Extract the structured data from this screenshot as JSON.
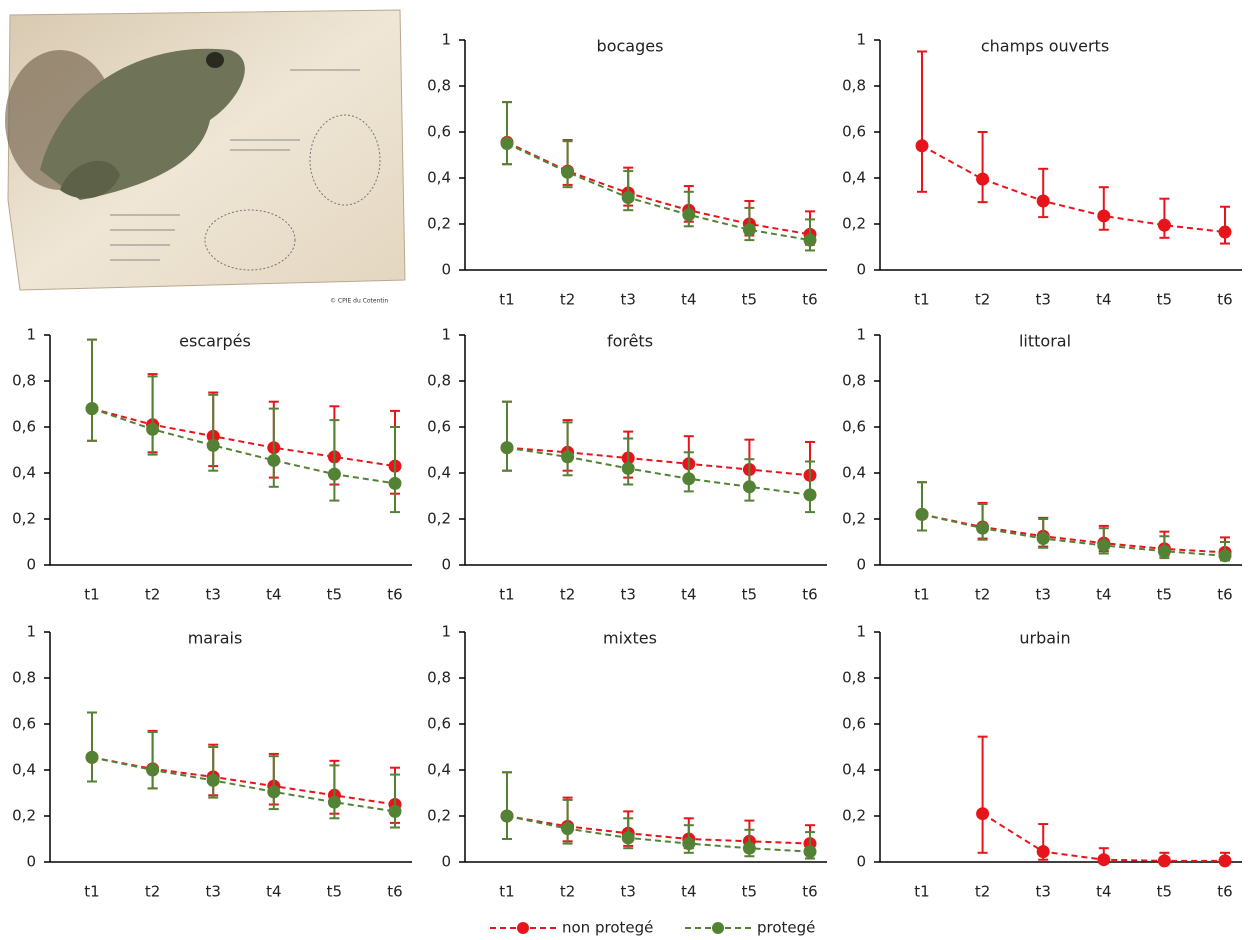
{
  "credit": "© CPIE du Cotentin",
  "chart_data": [
    {
      "type": "line",
      "title": "bocages",
      "categories": [
        "t1",
        "t2",
        "t3",
        "t4",
        "t5",
        "t6"
      ],
      "ylim": [
        0,
        1
      ],
      "yticks": [
        0,
        {
          "value": 0.2,
          "label": "0,2"
        },
        {
          "value": 0.4,
          "label": "0,4"
        },
        {
          "value": 0.6,
          "label": "0,6"
        },
        {
          "value": 0.8,
          "label": "0,8"
        },
        1
      ],
      "series": [
        {
          "name": "non protegé",
          "color": "#e8141b",
          "values": [
            0.555,
            0.43,
            0.335,
            0.26,
            0.2,
            0.155
          ],
          "lower": [
            0.46,
            0.37,
            0.28,
            0.21,
            0.15,
            0.11
          ],
          "upper": [
            0.73,
            0.565,
            0.445,
            0.365,
            0.3,
            0.255
          ]
        },
        {
          "name": "protegé",
          "color": "#548235",
          "values": [
            0.55,
            0.425,
            0.315,
            0.24,
            0.175,
            0.13
          ],
          "lower": [
            0.46,
            0.36,
            0.26,
            0.19,
            0.13,
            0.085
          ],
          "upper": [
            0.73,
            0.56,
            0.43,
            0.34,
            0.27,
            0.22
          ]
        }
      ]
    },
    {
      "type": "line",
      "title": "champs ouverts",
      "categories": [
        "t1",
        "t2",
        "t3",
        "t4",
        "t5",
        "t6"
      ],
      "ylim": [
        0,
        1
      ],
      "yticks": [
        0,
        {
          "value": 0.2,
          "label": "0,2"
        },
        {
          "value": 0.4,
          "label": "0,4"
        },
        {
          "value": 0.6,
          "label": "0,6"
        },
        {
          "value": 0.8,
          "label": "0,8"
        },
        1
      ],
      "series": [
        {
          "name": "non protegé",
          "color": "#e8141b",
          "values": [
            0.54,
            0.395,
            0.3,
            0.235,
            0.195,
            0.165
          ],
          "lower": [
            0.34,
            0.295,
            0.23,
            0.175,
            0.14,
            0.115
          ],
          "upper": [
            0.95,
            0.6,
            0.44,
            0.36,
            0.31,
            0.275
          ]
        }
      ]
    },
    {
      "type": "line",
      "title": "escarpés",
      "categories": [
        "t1",
        "t2",
        "t3",
        "t4",
        "t5",
        "t6"
      ],
      "ylim": [
        0,
        1
      ],
      "yticks": [
        0,
        {
          "value": 0.2,
          "label": "0,2"
        },
        {
          "value": 0.4,
          "label": "0,4"
        },
        {
          "value": 0.6,
          "label": "0,6"
        },
        {
          "value": 0.8,
          "label": "0,8"
        },
        1
      ],
      "series": [
        {
          "name": "non protegé",
          "color": "#e8141b",
          "values": [
            0.68,
            0.61,
            0.56,
            0.51,
            0.47,
            0.43
          ],
          "lower": [
            0.54,
            0.49,
            0.43,
            0.38,
            0.35,
            0.31
          ],
          "upper": [
            0.98,
            0.83,
            0.75,
            0.71,
            0.69,
            0.67
          ]
        },
        {
          "name": "protegé",
          "color": "#548235",
          "values": [
            0.68,
            0.59,
            0.52,
            0.455,
            0.395,
            0.355
          ],
          "lower": [
            0.54,
            0.48,
            0.41,
            0.34,
            0.28,
            0.23
          ],
          "upper": [
            0.98,
            0.82,
            0.74,
            0.68,
            0.63,
            0.6
          ]
        }
      ]
    },
    {
      "type": "line",
      "title": "forêts",
      "categories": [
        "t1",
        "t2",
        "t3",
        "t4",
        "t5",
        "t6"
      ],
      "ylim": [
        0,
        1
      ],
      "yticks": [
        0,
        {
          "value": 0.2,
          "label": "0,2"
        },
        {
          "value": 0.4,
          "label": "0,4"
        },
        {
          "value": 0.6,
          "label": "0,6"
        },
        {
          "value": 0.8,
          "label": "0,8"
        },
        1
      ],
      "series": [
        {
          "name": "non protegé",
          "color": "#e8141b",
          "values": [
            0.51,
            0.49,
            0.465,
            0.44,
            0.415,
            0.39
          ],
          "lower": [
            0.41,
            0.41,
            0.38,
            0.36,
            0.33,
            0.31
          ],
          "upper": [
            0.71,
            0.63,
            0.58,
            0.56,
            0.545,
            0.535
          ]
        },
        {
          "name": "protegé",
          "color": "#548235",
          "values": [
            0.51,
            0.47,
            0.42,
            0.375,
            0.34,
            0.305
          ],
          "lower": [
            0.41,
            0.39,
            0.35,
            0.32,
            0.28,
            0.23
          ],
          "upper": [
            0.71,
            0.62,
            0.55,
            0.49,
            0.46,
            0.45
          ]
        }
      ]
    },
    {
      "type": "line",
      "title": "littoral",
      "categories": [
        "t1",
        "t2",
        "t3",
        "t4",
        "t5",
        "t6"
      ],
      "ylim": [
        0,
        1
      ],
      "yticks": [
        0,
        {
          "value": 0.2,
          "label": "0,2"
        },
        {
          "value": 0.4,
          "label": "0,4"
        },
        {
          "value": 0.6,
          "label": "0,6"
        },
        {
          "value": 0.8,
          "label": "0,8"
        },
        1
      ],
      "series": [
        {
          "name": "non protegé",
          "color": "#e8141b",
          "values": [
            0.22,
            0.165,
            0.125,
            0.095,
            0.07,
            0.055
          ],
          "lower": [
            0.15,
            0.115,
            0.08,
            0.06,
            0.04,
            0.03
          ],
          "upper": [
            0.36,
            0.27,
            0.205,
            0.17,
            0.145,
            0.12
          ]
        },
        {
          "name": "protegé",
          "color": "#548235",
          "values": [
            0.22,
            0.16,
            0.115,
            0.085,
            0.06,
            0.04
          ],
          "lower": [
            0.15,
            0.11,
            0.075,
            0.05,
            0.03,
            0.02
          ],
          "upper": [
            0.36,
            0.265,
            0.2,
            0.16,
            0.125,
            0.1
          ]
        }
      ]
    },
    {
      "type": "line",
      "title": "marais",
      "categories": [
        "t1",
        "t2",
        "t3",
        "t4",
        "t5",
        "t6"
      ],
      "ylim": [
        0,
        1
      ],
      "yticks": [
        0,
        {
          "value": 0.2,
          "label": "0,2"
        },
        {
          "value": 0.4,
          "label": "0,4"
        },
        {
          "value": 0.6,
          "label": "0,6"
        },
        {
          "value": 0.8,
          "label": "0,8"
        },
        1
      ],
      "series": [
        {
          "name": "non protegé",
          "color": "#e8141b",
          "values": [
            0.455,
            0.405,
            0.37,
            0.33,
            0.29,
            0.25
          ],
          "lower": [
            0.35,
            0.32,
            0.29,
            0.25,
            0.21,
            0.17
          ],
          "upper": [
            0.65,
            0.57,
            0.51,
            0.47,
            0.44,
            0.41
          ]
        },
        {
          "name": "protegé",
          "color": "#548235",
          "values": [
            0.455,
            0.4,
            0.355,
            0.305,
            0.26,
            0.22
          ],
          "lower": [
            0.35,
            0.32,
            0.28,
            0.23,
            0.19,
            0.15
          ],
          "upper": [
            0.65,
            0.565,
            0.5,
            0.46,
            0.42,
            0.38
          ]
        }
      ]
    },
    {
      "type": "line",
      "title": "mixtes",
      "categories": [
        "t1",
        "t2",
        "t3",
        "t4",
        "t5",
        "t6"
      ],
      "ylim": [
        0,
        1
      ],
      "yticks": [
        0,
        {
          "value": 0.2,
          "label": "0,2"
        },
        {
          "value": 0.4,
          "label": "0,4"
        },
        {
          "value": 0.6,
          "label": "0,6"
        },
        {
          "value": 0.8,
          "label": "0,8"
        },
        1
      ],
      "series": [
        {
          "name": "non protegé",
          "color": "#e8141b",
          "values": [
            0.2,
            0.155,
            0.125,
            0.1,
            0.09,
            0.08
          ],
          "lower": [
            0.1,
            0.09,
            0.07,
            0.06,
            0.045,
            0.035
          ],
          "upper": [
            0.39,
            0.28,
            0.22,
            0.19,
            0.18,
            0.16
          ]
        },
        {
          "name": "protegé",
          "color": "#548235",
          "values": [
            0.2,
            0.145,
            0.105,
            0.08,
            0.06,
            0.045
          ],
          "lower": [
            0.1,
            0.08,
            0.06,
            0.04,
            0.025,
            0.015
          ],
          "upper": [
            0.39,
            0.27,
            0.19,
            0.16,
            0.14,
            0.13
          ]
        }
      ]
    },
    {
      "type": "line",
      "title": "urbain",
      "categories": [
        "t1",
        "t2",
        "t3",
        "t4",
        "t5",
        "t6"
      ],
      "ylim": [
        0,
        1
      ],
      "yticks": [
        0,
        {
          "value": 0.2,
          "label": "0,2"
        },
        {
          "value": 0.4,
          "label": "0,4"
        },
        {
          "value": 0.6,
          "label": "0,6"
        },
        {
          "value": 0.8,
          "label": "0,8"
        },
        1
      ],
      "series": [
        {
          "name": "non protegé",
          "color": "#e8141b",
          "values": [
            null,
            0.21,
            0.045,
            0.01,
            0.005,
            0.005
          ],
          "lower": [
            null,
            0.04,
            0.01,
            0,
            0,
            0
          ],
          "upper": [
            null,
            0.545,
            0.165,
            0.06,
            0.04,
            0.04
          ]
        }
      ]
    }
  ]
}
